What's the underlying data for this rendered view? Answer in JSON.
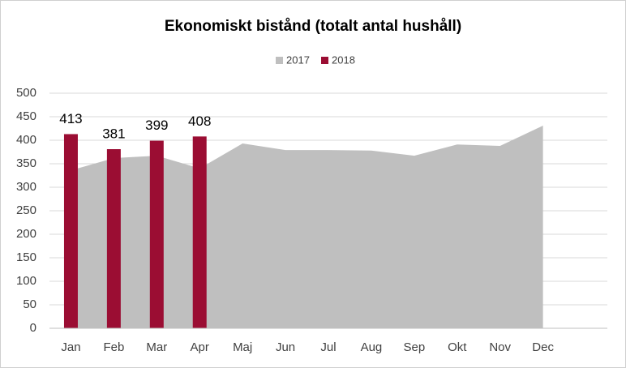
{
  "chart_data": {
    "type": "bar_area",
    "title": "Ekonomiskt bistånd (totalt antal hushåll)",
    "categories": [
      "Jan",
      "Feb",
      "Mar",
      "Apr",
      "Maj",
      "Jun",
      "Jul",
      "Aug",
      "Sep",
      "Okt",
      "Nov",
      "Dec",
      null
    ],
    "series": [
      {
        "name": "2017",
        "color": "#bfbfbf",
        "type": "area",
        "values": [
          336,
          362,
          367,
          340,
          393,
          379,
          379,
          378,
          367,
          391,
          388,
          431,
          null
        ]
      },
      {
        "name": "2018",
        "color": "#9b0d33",
        "type": "bar",
        "values": [
          413,
          381,
          399,
          408,
          null,
          null,
          null,
          null,
          null,
          null,
          null,
          null,
          null
        ]
      }
    ],
    "ylim": [
      0,
      500
    ],
    "yticks": [
      0,
      50,
      100,
      150,
      200,
      250,
      300,
      350,
      400,
      450,
      500
    ],
    "grid": true,
    "legend": "top"
  }
}
